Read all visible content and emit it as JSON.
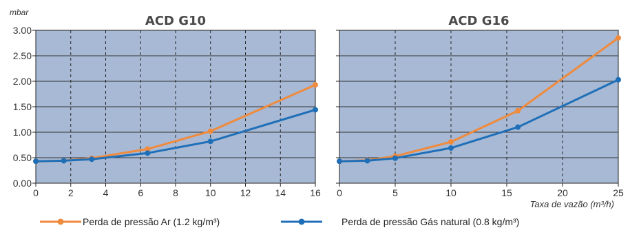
{
  "chart_data": {
    "type": "line",
    "ylabel": "mbar",
    "xlabel": "Taxa de vazão (m³/h)",
    "y_ticks": [
      "0.00",
      "0.50",
      "1.00",
      "1.50",
      "2.00",
      "2.50",
      "3.00"
    ],
    "ylim": [
      0,
      3
    ],
    "colors": {
      "background": "#a7b9d4",
      "ar": "#f08a3c",
      "gas": "#1f6fb8"
    },
    "grid": true,
    "legend_position": "bottom",
    "legend": [
      {
        "key": "ar",
        "label": "Perda de pressão Ar (1.2 kg/m³)"
      },
      {
        "key": "gas",
        "label": "Perda de pressão Gás natural (0.8 kg/m³)"
      }
    ],
    "panels": [
      {
        "title": "ACD G10",
        "xlim": [
          0,
          16
        ],
        "x_ticks": [
          "0",
          "2",
          "4",
          "6",
          "8",
          "10",
          "12",
          "14",
          "16"
        ],
        "series": [
          {
            "key": "ar",
            "name": "Perda de pressão Ar (1.2 kg/m³)",
            "x": [
              0,
              1.6,
              3.2,
              6.4,
              10,
              16
            ],
            "y": [
              0.43,
              0.44,
              0.49,
              0.67,
              1.02,
              1.93
            ]
          },
          {
            "key": "gas",
            "name": "Perda de pressão Gás natural (0.8 kg/m³)",
            "x": [
              0,
              1.6,
              3.2,
              6.4,
              10,
              16
            ],
            "y": [
              0.43,
              0.44,
              0.47,
              0.59,
              0.82,
              1.44
            ]
          }
        ]
      },
      {
        "title": "ACD G16",
        "xlim": [
          0,
          25
        ],
        "x_ticks": [
          "0",
          "5",
          "10",
          "15",
          "20",
          "25"
        ],
        "series": [
          {
            "key": "ar",
            "name": "Perda de pressão Ar (1.2 kg/m³)",
            "x": [
              0,
              2.5,
              5,
              10,
              16,
              25
            ],
            "y": [
              0.43,
              0.45,
              0.53,
              0.81,
              1.42,
              2.85
            ]
          },
          {
            "key": "gas",
            "name": "Perda de pressão Gás natural (0.8 kg/m³)",
            "x": [
              0,
              2.5,
              5,
              10,
              16,
              25
            ],
            "y": [
              0.43,
              0.44,
              0.49,
              0.69,
              1.1,
              2.03
            ]
          }
        ]
      }
    ]
  }
}
